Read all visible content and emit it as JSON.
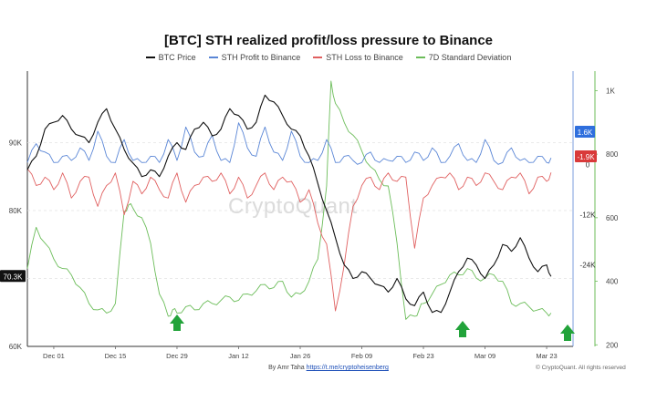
{
  "header": {
    "title": "[BTC] STH realized profit/loss pressure to Binance"
  },
  "watermark": "CryptoQuant",
  "footer": {
    "byline_prefix": "By Amr Taha",
    "byline_link": "https://t.me/cryptoheisenberg",
    "copyright": "© CryptoQuant. All rights reserved"
  },
  "colors": {
    "btc": "#111111",
    "profit": "#5a86d6",
    "loss": "#e06060",
    "std": "#6cbd5a",
    "arrow": "#22a33a"
  },
  "chart_data": {
    "type": "line",
    "title": "[BTC] STH realized profit/loss pressure to Binance",
    "x_tick_labels": [
      "Dec 01",
      "Dec 15",
      "Dec 29",
      "Jan 12",
      "Jan 26",
      "Feb 09",
      "Feb 23",
      "Mar 09",
      "Mar 23"
    ],
    "x_range_days": [
      -6,
      118
    ],
    "x_tick_days": [
      0,
      14,
      28,
      42,
      56,
      70,
      84,
      98,
      112
    ],
    "left_axis": {
      "ticks": [
        60,
        70,
        80,
        90
      ],
      "tick_labels": [
        "60K",
        "70K",
        "80K",
        "90K"
      ],
      "range": [
        60,
        100
      ],
      "unit": "K USD"
    },
    "right_inner_axis": {
      "ticks": [
        0,
        -12,
        -24
      ],
      "tick_labels": [
        "0",
        "-12K",
        "-24K"
      ],
      "range": [
        -43.5,
        21.5
      ],
      "unit": "K"
    },
    "right_outer_axis": {
      "ticks": [
        200,
        400,
        600,
        800,
        1000
      ],
      "tick_labels": [
        "200",
        "400",
        "600",
        "800",
        "1K"
      ],
      "range": [
        195,
        1050
      ]
    },
    "current_labels": {
      "btc": "70.3K",
      "profit": "1.6K",
      "loss": "-1.9K"
    },
    "series": [
      {
        "name": "BTC Price",
        "axis": "left",
        "color": "#111111",
        "days": [
          -6,
          -4,
          -2,
          0,
          2,
          4,
          6,
          8,
          10,
          12,
          14,
          16,
          18,
          20,
          22,
          24,
          26,
          28,
          30,
          32,
          34,
          36,
          38,
          40,
          42,
          44,
          46,
          48,
          50,
          52,
          54,
          56,
          58,
          60,
          62,
          64,
          66,
          68,
          70,
          72,
          74,
          76,
          78,
          80,
          82,
          84,
          86,
          88,
          90,
          92,
          94,
          96,
          98,
          100,
          102,
          104,
          106,
          108,
          110,
          112,
          113
        ],
        "values": [
          86,
          88,
          92,
          93,
          94,
          92,
          91,
          90,
          93,
          95,
          92,
          89,
          87,
          85,
          86,
          85,
          88,
          90,
          89,
          92,
          93,
          91,
          92,
          95,
          94,
          92,
          93,
          97,
          96,
          94,
          92,
          91,
          88,
          84,
          80,
          76,
          72,
          70,
          71,
          70,
          69,
          68,
          70,
          67,
          66,
          68,
          65,
          65,
          68,
          71,
          73,
          72,
          70,
          72,
          75,
          74,
          76,
          73,
          71,
          72,
          70.3
        ]
      },
      {
        "name": "STH Profit to Binance",
        "axis": "right_inner",
        "color": "#5a86d6",
        "days": [
          -6,
          -4,
          -2,
          0,
          2,
          4,
          6,
          8,
          10,
          12,
          14,
          16,
          18,
          20,
          22,
          24,
          26,
          28,
          30,
          32,
          34,
          36,
          38,
          40,
          42,
          44,
          46,
          48,
          50,
          52,
          54,
          56,
          58,
          60,
          62,
          64,
          66,
          68,
          70,
          72,
          74,
          76,
          78,
          80,
          82,
          84,
          86,
          88,
          90,
          92,
          94,
          96,
          98,
          100,
          102,
          104,
          106,
          108,
          110,
          112,
          113
        ],
        "values": [
          0.5,
          5,
          3,
          0.5,
          2,
          1,
          4,
          1,
          8,
          2,
          0.5,
          6,
          1,
          0.5,
          2,
          0.5,
          6,
          1,
          9,
          3,
          2,
          7,
          1,
          0.5,
          10,
          4,
          2,
          9,
          3,
          1,
          8,
          2,
          0.5,
          1,
          6,
          0.5,
          2,
          1,
          0.5,
          3,
          0.5,
          1,
          2,
          0.5,
          3,
          1,
          4,
          0.5,
          2,
          5,
          1,
          0.5,
          6,
          1,
          0.5,
          4,
          1,
          0.5,
          2,
          0.5,
          1.6
        ]
      },
      {
        "name": "STH Loss to Binance",
        "axis": "right_inner",
        "color": "#e06060",
        "days": [
          -6,
          -4,
          -2,
          0,
          2,
          4,
          6,
          8,
          10,
          12,
          14,
          16,
          18,
          20,
          22,
          24,
          26,
          28,
          30,
          32,
          34,
          36,
          38,
          40,
          42,
          44,
          46,
          48,
          50,
          52,
          54,
          56,
          58,
          60,
          62,
          64,
          66,
          68,
          70,
          72,
          74,
          76,
          78,
          80,
          82,
          84,
          86,
          88,
          90,
          92,
          94,
          96,
          98,
          100,
          102,
          104,
          106,
          108,
          110,
          112,
          113
        ],
        "values": [
          -1,
          -5,
          -3,
          -6,
          -2,
          -8,
          -4,
          -3,
          -10,
          -5,
          -2,
          -12,
          -4,
          -7,
          -3,
          -6,
          -8,
          -2,
          -9,
          -5,
          -3,
          -4,
          -2,
          -7,
          -3,
          -8,
          -5,
          -2,
          -6,
          -3,
          -4,
          -9,
          -6,
          -14,
          -19,
          -35,
          -24,
          -10,
          -5,
          -3,
          -6,
          -2,
          -4,
          -3,
          -20,
          -8,
          -5,
          -3,
          -2,
          -6,
          -3,
          -5,
          -2,
          -4,
          -6,
          -3,
          -2,
          -7,
          -3,
          -4,
          -1.9
        ]
      },
      {
        "name": "7D Standard Deviation",
        "axis": "right_outer",
        "color": "#6cbd5a",
        "days": [
          -6,
          -4,
          -2,
          0,
          2,
          4,
          6,
          8,
          10,
          12,
          14,
          16,
          17,
          18,
          20,
          22,
          24,
          26,
          27,
          28,
          30,
          32,
          34,
          36,
          38,
          40,
          42,
          44,
          46,
          48,
          50,
          52,
          54,
          56,
          58,
          60,
          62,
          63,
          64,
          66,
          68,
          70,
          72,
          74,
          76,
          78,
          80,
          82,
          83,
          84,
          86,
          88,
          90,
          92,
          94,
          96,
          98,
          100,
          102,
          104,
          106,
          108,
          110,
          112,
          113
        ],
        "values": [
          440,
          570,
          520,
          470,
          440,
          420,
          380,
          330,
          310,
          300,
          330,
          620,
          640,
          630,
          600,
          520,
          360,
          290,
          310,
          300,
          320,
          310,
          330,
          330,
          340,
          350,
          340,
          360,
          370,
          390,
          380,
          400,
          350,
          360,
          400,
          470,
          700,
          1030,
          960,
          900,
          860,
          810,
          760,
          720,
          700,
          520,
          280,
          290,
          310,
          330,
          360,
          390,
          420,
          420,
          440,
          410,
          410,
          420,
          400,
          330,
          330,
          320,
          310,
          300,
          300
        ]
      }
    ]
  }
}
